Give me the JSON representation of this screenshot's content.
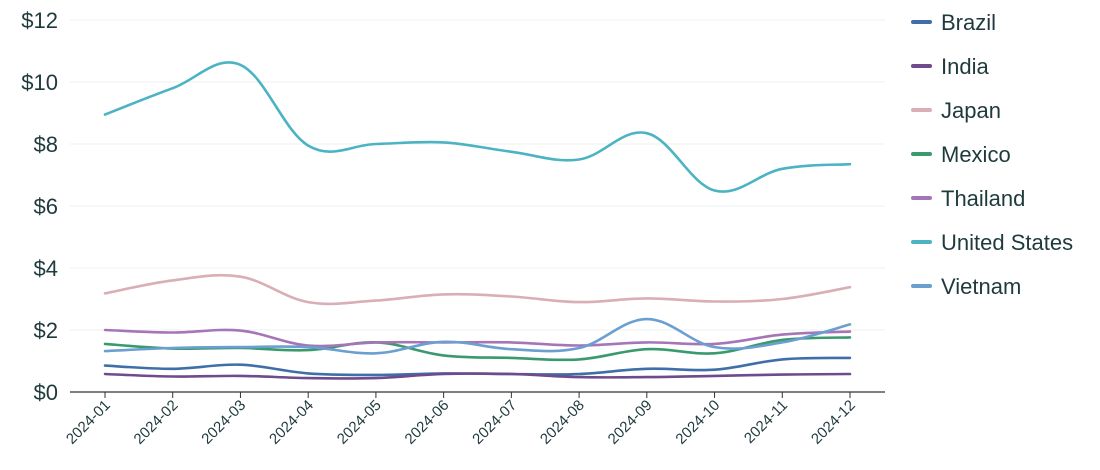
{
  "chart_data": {
    "type": "line",
    "title": "",
    "xlabel": "",
    "ylabel": "",
    "categories": [
      "2024-01",
      "2024-02",
      "2024-03",
      "2024-04",
      "2024-05",
      "2024-06",
      "2024-07",
      "2024-08",
      "2024-09",
      "2024-10",
      "2024-11",
      "2024-12"
    ],
    "ylim": [
      0,
      12
    ],
    "yticks": [
      0,
      2,
      4,
      6,
      8,
      10,
      12
    ],
    "ytick_labels": [
      "$0",
      "$2",
      "$4",
      "$6",
      "$8",
      "$10",
      "$12"
    ],
    "legend_position": "right",
    "grid": true,
    "series": [
      {
        "name": "Brazil",
        "color": "#3f6fa8",
        "values": [
          0.85,
          0.75,
          0.88,
          0.6,
          0.55,
          0.6,
          0.58,
          0.58,
          0.75,
          0.72,
          1.05,
          1.1
        ]
      },
      {
        "name": "India",
        "color": "#6f4a8c",
        "values": [
          0.58,
          0.5,
          0.52,
          0.45,
          0.45,
          0.58,
          0.58,
          0.48,
          0.48,
          0.52,
          0.56,
          0.58
        ]
      },
      {
        "name": "Japan",
        "color": "#d9aeb6",
        "values": [
          3.18,
          3.6,
          3.72,
          2.9,
          2.95,
          3.15,
          3.08,
          2.9,
          3.02,
          2.92,
          3.0,
          3.38
        ]
      },
      {
        "name": "Mexico",
        "color": "#3a9a6e",
        "values": [
          1.55,
          1.4,
          1.42,
          1.35,
          1.6,
          1.18,
          1.1,
          1.05,
          1.38,
          1.25,
          1.68,
          1.76
        ]
      },
      {
        "name": "Thailand",
        "color": "#a675b8",
        "values": [
          2.0,
          1.92,
          1.98,
          1.5,
          1.6,
          1.6,
          1.6,
          1.5,
          1.6,
          1.55,
          1.85,
          1.95
        ]
      },
      {
        "name": "United States",
        "color": "#4cb3c4",
        "values": [
          8.95,
          9.8,
          10.55,
          7.95,
          8.0,
          8.05,
          7.75,
          7.5,
          8.35,
          6.5,
          7.2,
          7.35
        ]
      },
      {
        "name": "Vietnam",
        "color": "#6a9fd0",
        "values": [
          1.32,
          1.42,
          1.45,
          1.45,
          1.25,
          1.62,
          1.38,
          1.42,
          2.35,
          1.45,
          1.6,
          2.18
        ]
      }
    ]
  }
}
